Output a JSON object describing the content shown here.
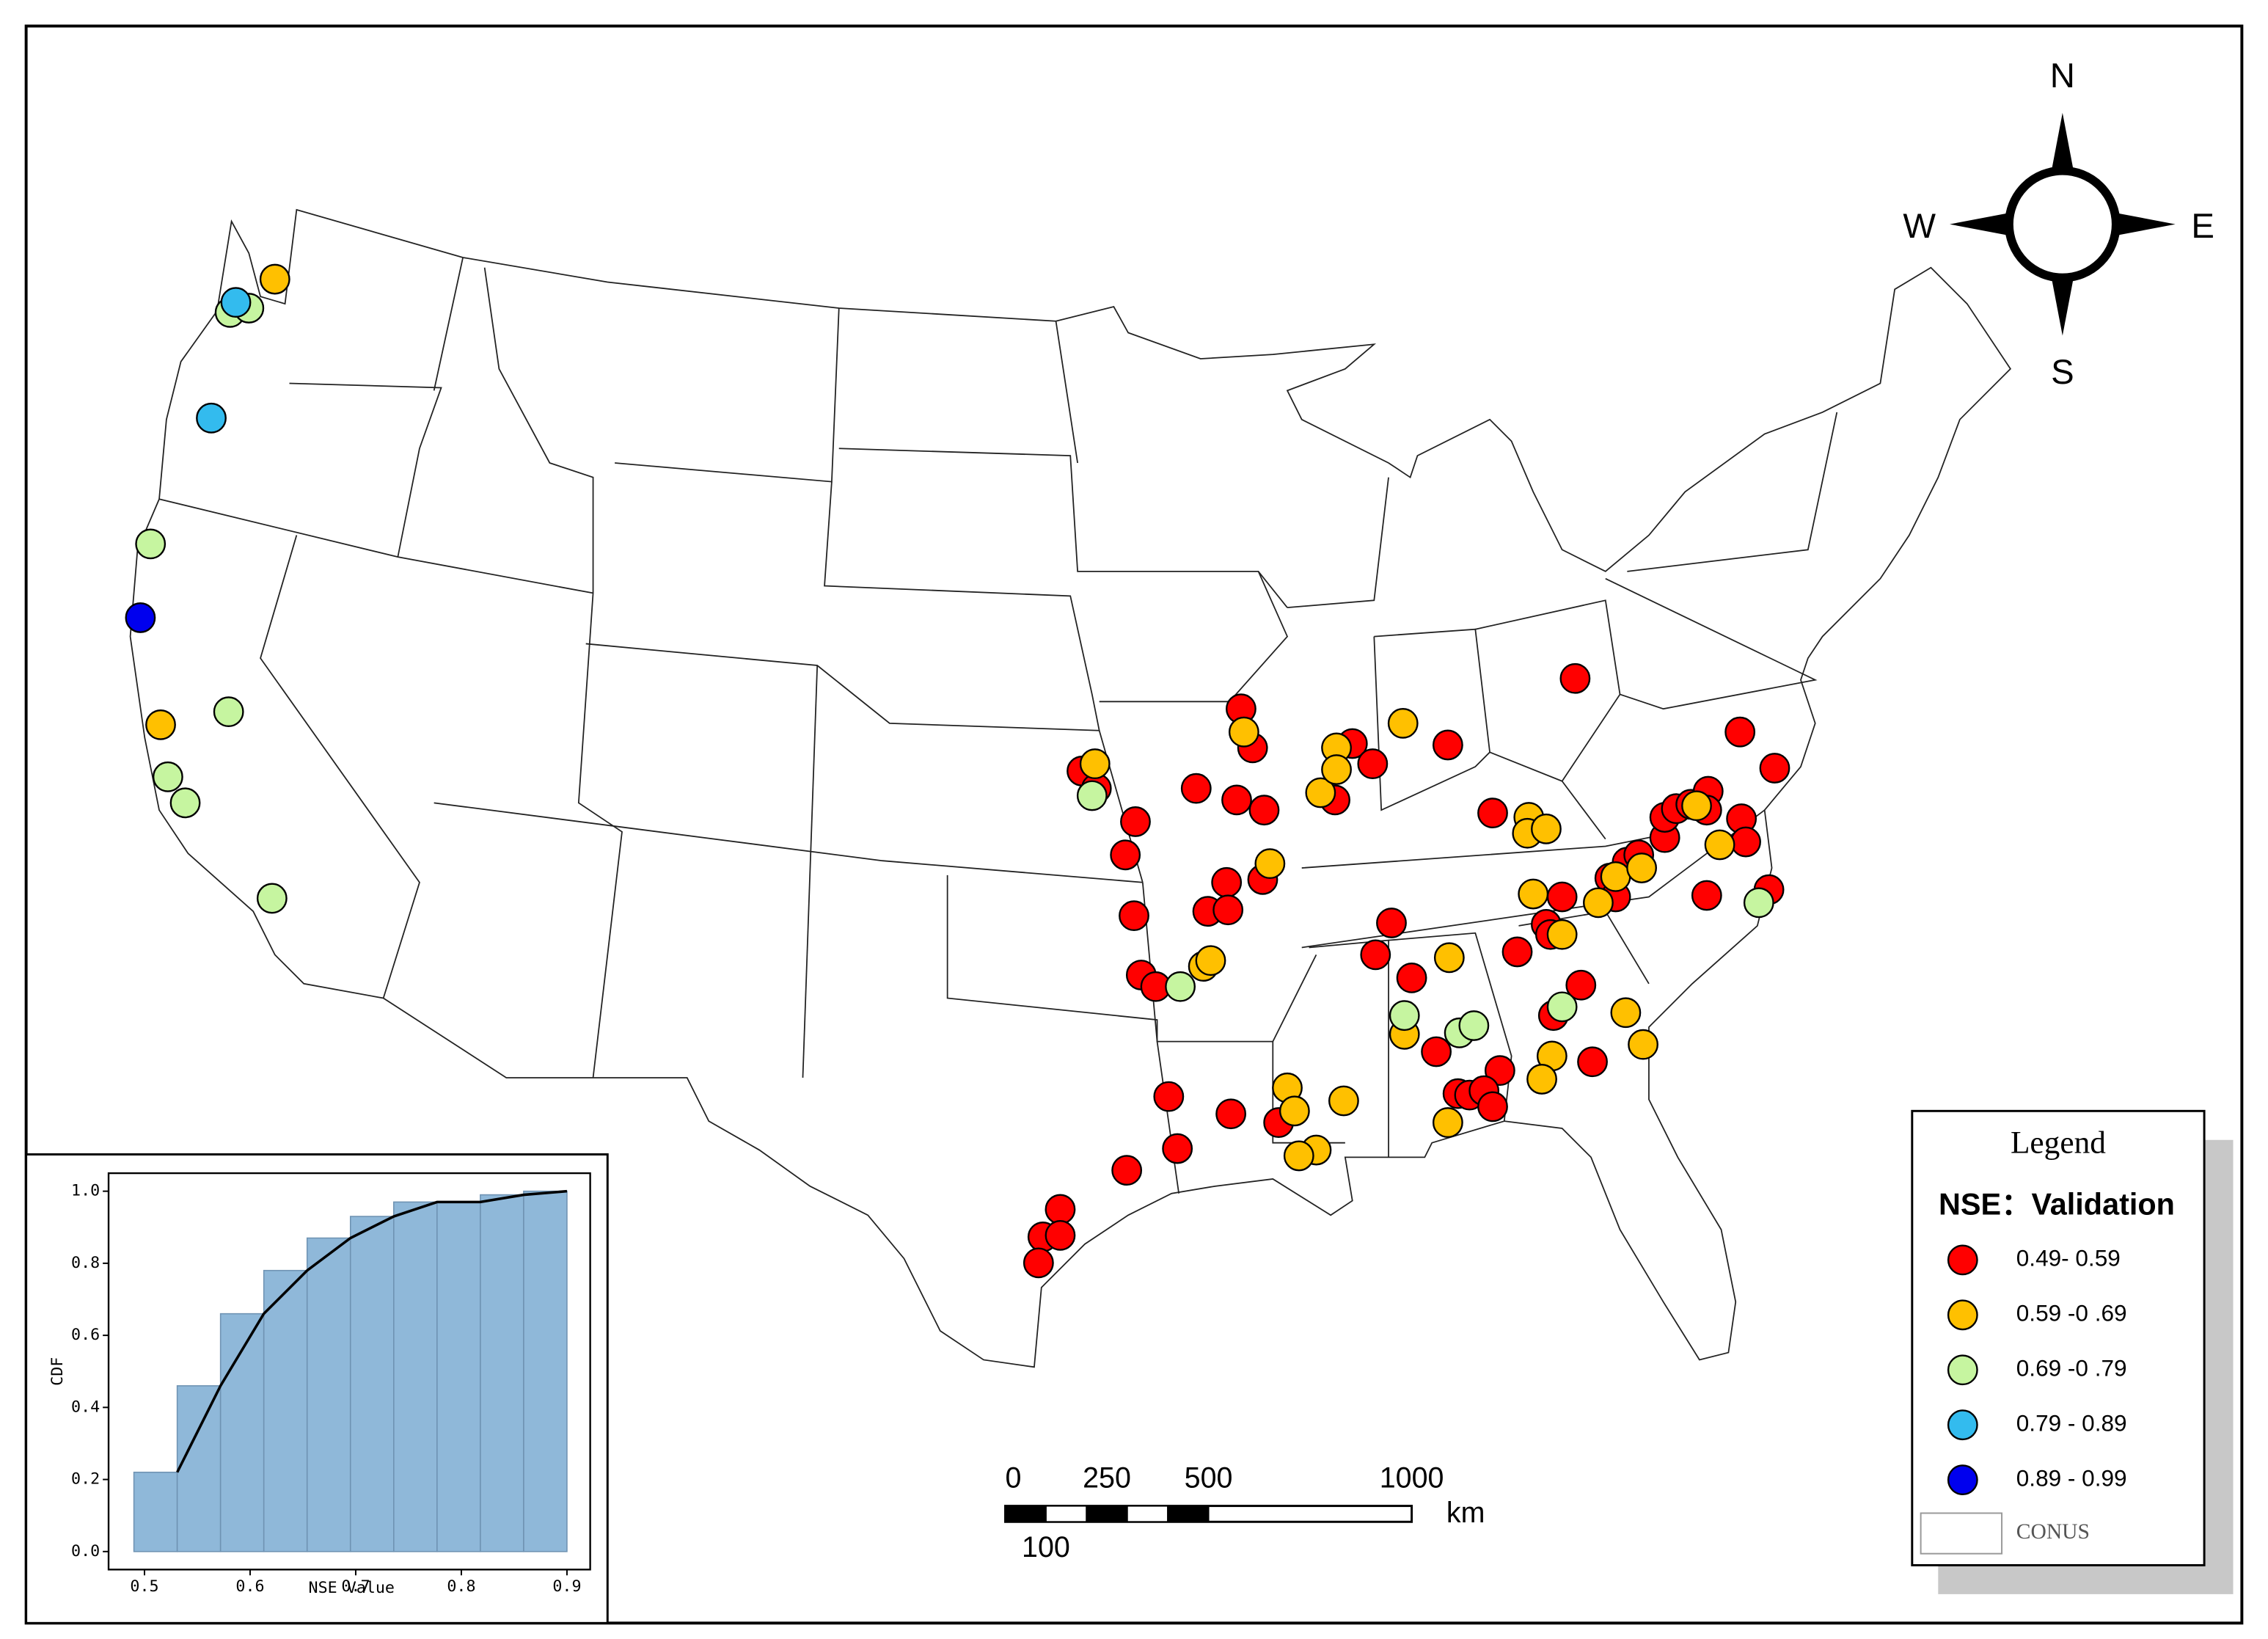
{
  "map": {
    "compass": {
      "north": "N",
      "west": "W",
      "east": "E",
      "south": "S"
    },
    "scale_bar": {
      "ticks": [
        0,
        100,
        250,
        500,
        1000
      ],
      "unit": "km"
    },
    "legend": {
      "title": "Legend",
      "subtitle": "NSE：Validation",
      "items": [
        {
          "label": "0.49- 0.59",
          "color": "#ff0000"
        },
        {
          "label": "0.59 -0 .69",
          "color": "#ffc000"
        },
        {
          "label": "0.69 -0 .79",
          "color": "#c6f5a0"
        },
        {
          "label": "0.79 - 0.89",
          "color": "#33bbee"
        },
        {
          "label": "0.89 - 0.99",
          "color": "#0000ee"
        }
      ],
      "boundary": "CONUS"
    }
  },
  "chart_data": {
    "type": "histogram",
    "xlabel": "NSE Value",
    "ylabel": "CDF",
    "bins": [
      0.49,
      0.531,
      0.572,
      0.613,
      0.654,
      0.695,
      0.736,
      0.777,
      0.818,
      0.859,
      0.9
    ],
    "values": [
      0.22,
      0.46,
      0.66,
      0.78,
      0.87,
      0.93,
      0.97,
      0.97,
      0.99,
      1.0
    ],
    "color": "#8fb8d9",
    "line_color": "#000000",
    "xlim": [
      0.466,
      0.922
    ],
    "ylim": [
      -0.05,
      1.05
    ],
    "xticks": [
      0.5,
      0.6,
      0.7,
      0.8,
      0.9
    ],
    "yticks": [
      {
        "value": 0,
        "label": "0.0"
      },
      0.2,
      0.4,
      0.6,
      0.8,
      {
        "value": 1,
        "label": "1.0"
      }
    ]
  }
}
